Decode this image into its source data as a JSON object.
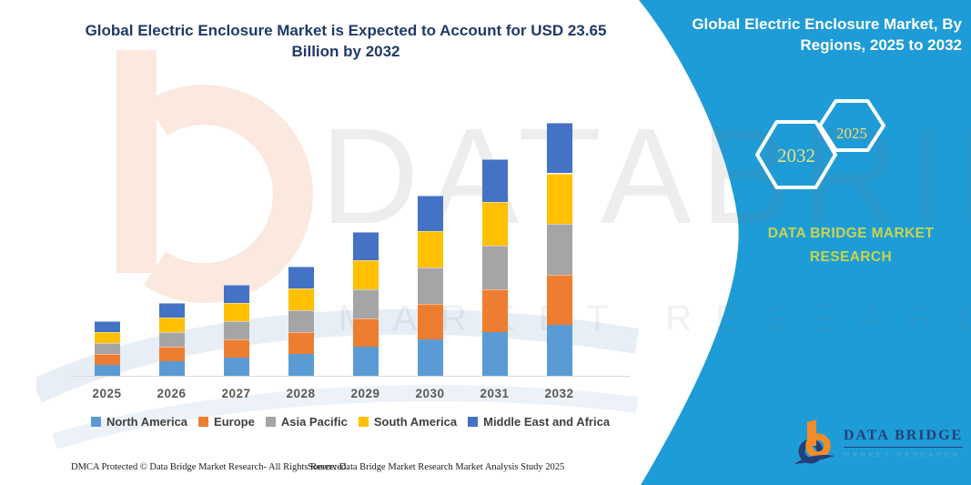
{
  "title": {
    "line1": "Global Electric Enclosure Market is Expected to Account for USD 23.65",
    "line2": "Billion by 2032"
  },
  "side_panel": {
    "heading_line1": "Global Electric Enclosure Market, By",
    "heading_line2": "Regions, 2025 to 2032",
    "hexagon_back_label": "2032",
    "hexagon_front_label": "2025",
    "brand_line1": "DATA BRIDGE MARKET",
    "brand_line2": "RESEARCH",
    "logo_name": "DATA BRIDGE",
    "logo_subtitle": "MARKET RESEARCH",
    "colors": {
      "panel_blue": "#1E9CD7",
      "hexagon_year_text": "#E9E17E",
      "brand_text": "#C8D44E",
      "logo_orange": "#F28C28",
      "logo_navy": "#24407A"
    }
  },
  "watermark": {
    "big_text": "DATABRIDGE",
    "sub_text": "MARKET RESEARCH"
  },
  "chart_data": {
    "type": "bar",
    "stacked": true,
    "title": "Global Electric Enclosure Market is Expected to Account for USD 23.65 Billion by 2032",
    "xlabel": "",
    "ylabel": "",
    "unit": "USD Billion",
    "ylim": [
      0,
      25
    ],
    "grid": false,
    "legend_position": "bottom",
    "categories": [
      "2025",
      "2026",
      "2027",
      "2028",
      "2029",
      "2030",
      "2031",
      "2032"
    ],
    "series": [
      {
        "name": "North America",
        "color": "#5B9BD5",
        "values": [
          1.02,
          1.36,
          1.7,
          2.04,
          2.69,
          3.37,
          4.05,
          4.73
        ]
      },
      {
        "name": "Europe",
        "color": "#ED7D31",
        "values": [
          1.02,
          1.36,
          1.7,
          2.04,
          2.69,
          3.37,
          4.05,
          4.73
        ]
      },
      {
        "name": "Asia Pacific",
        "color": "#A5A5A5",
        "values": [
          1.02,
          1.36,
          1.7,
          2.04,
          2.69,
          3.37,
          4.05,
          4.73
        ]
      },
      {
        "name": "South America",
        "color": "#FFC000",
        "values": [
          1.02,
          1.36,
          1.7,
          2.04,
          2.69,
          3.37,
          4.05,
          4.73
        ]
      },
      {
        "name": "Middle East and Africa",
        "color": "#4472C4",
        "values": [
          1.02,
          1.36,
          1.7,
          2.04,
          2.69,
          3.37,
          4.05,
          4.73
        ]
      }
    ],
    "totals": [
      5.1,
      6.8,
      8.51,
      10.21,
      13.44,
      16.84,
      20.25,
      23.65
    ]
  },
  "footer": {
    "dmca": "DMCA Protected © Data Bridge Market Research-  All Rights Reserved.",
    "source": "Source: Data Bridge Market Research  Market Analysis Study 2025"
  }
}
